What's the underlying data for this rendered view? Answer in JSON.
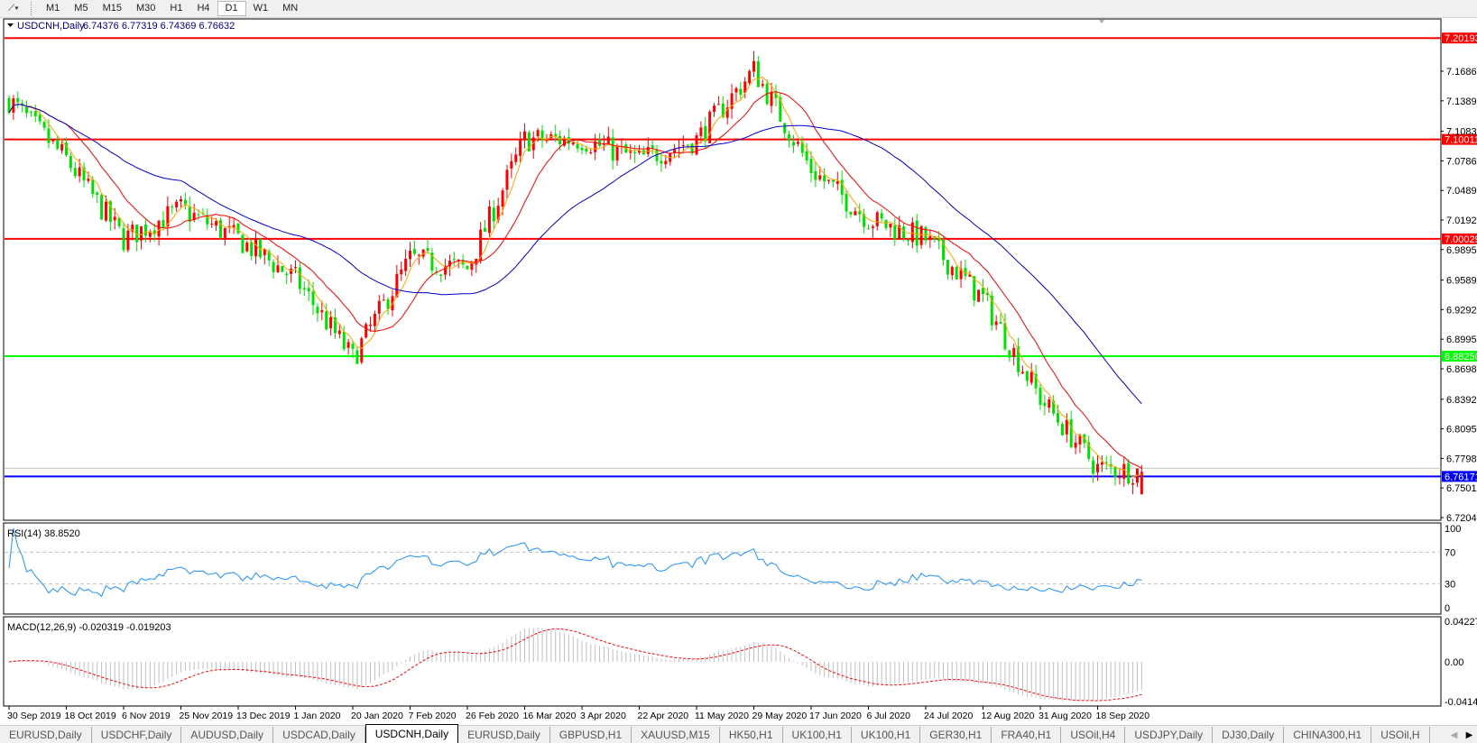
{
  "toolbar": {
    "tool_icon": "line-tools-icon",
    "timeframes": [
      "M1",
      "M5",
      "M15",
      "M30",
      "H1",
      "H4",
      "D1",
      "W1",
      "MN"
    ],
    "active_timeframe": "D1"
  },
  "chart_header": {
    "symbol": "USDCNH,Daily",
    "ohlc": "6.74376 6.77319 6.74369 6.76632"
  },
  "rsi_label": "RSI(14) 38.8520",
  "macd_label": "MACD(12,26,9) -0.020319 -0.019203",
  "tabs": [
    "EURUSD,Daily",
    "USDCHF,Daily",
    "AUDUSD,Daily",
    "USDCAD,Daily",
    "USDCNH,Daily",
    "EURUSD,Daily",
    "GBPUSD,H1",
    "XAUUSD,M15",
    "HK50,H1",
    "UK100,H1",
    "UK100,H1",
    "GER30,H1",
    "FRA40,H1",
    "USOil,H4",
    "USDJPY,Daily",
    "DJ30,Daily",
    "CHINA300,H1",
    "USOil,H"
  ],
  "active_tab": "USDCNH,Daily",
  "colors": {
    "bull_candle": "#ff0000",
    "bear_candle": "#00e000",
    "ma_fast": "#ffa500",
    "ma_mid": "#ff0000",
    "ma_slow": "#0000cc",
    "rsi_line": "#1e90ff",
    "macd_hist": "#c0c0c0",
    "macd_signal": "#ff0000"
  },
  "chart_data": {
    "type": "candlestick",
    "symbol": "USDCNH",
    "timeframe": "Daily",
    "last_bar": {
      "open": 6.74376,
      "high": 6.77319,
      "low": 6.74369,
      "close": 6.76632
    },
    "x_tick_labels": [
      "30 Sep 2019",
      "18 Oct 2019",
      "6 Nov 2019",
      "25 Nov 2019",
      "13 Dec 2019",
      "1 Jan 2020",
      "20 Jan 2020",
      "7 Feb 2020",
      "26 Feb 2020",
      "16 Mar 2020",
      "3 Apr 2020",
      "22 Apr 2020",
      "11 May 2020",
      "29 May 2020",
      "17 Jun 2020",
      "6 Jul 2020",
      "24 Jul 2020",
      "12 Aug 2020",
      "31 Aug 2020",
      "18 Sep 2020"
    ],
    "approx_close_at_ticks": [
      7.14,
      7.08,
      7.0,
      7.03,
      7.0,
      6.96,
      6.88,
      6.98,
      6.97,
      7.1,
      7.1,
      7.08,
      7.1,
      7.17,
      7.07,
      7.02,
      7.0,
      6.94,
      6.84,
      6.77
    ],
    "final_close": 6.76632,
    "y_tick_labels": [
      "7.16860",
      "7.13890",
      "7.10830",
      "7.07860",
      "7.04890",
      "7.01920",
      "6.98950",
      "6.95890",
      "6.92920",
      "6.89950",
      "6.86980",
      "6.83920",
      "6.80950",
      "6.77980",
      "6.75010",
      "6.72040"
    ],
    "ylim": [
      6.7204,
      7.206
    ],
    "horizontal_lines": [
      {
        "price": "7.20193",
        "color": "#ff0000"
      },
      {
        "price": "7.10011",
        "color": "#ff0000"
      },
      {
        "price": "7.00029",
        "color": "#ff0000"
      },
      {
        "price": "6.88250",
        "color": "#00ff00"
      },
      {
        "price": "6.76171",
        "color": "#0000ff"
      }
    ],
    "bid_line": "6.76632",
    "moving_averages": [
      "fast (orange)",
      "mid (red)",
      "slow (blue)"
    ],
    "rsi": {
      "period": 14,
      "value": 38.852,
      "levels": [
        70,
        30
      ],
      "axis_labels": [
        "100",
        "70",
        "30",
        "0"
      ]
    },
    "macd": {
      "fast": 12,
      "slow": 26,
      "signal": 9,
      "main": -0.020319,
      "signal_value": -0.019203,
      "axis_labels": [
        "0.042275",
        "0.00",
        "-0.04148"
      ]
    }
  }
}
